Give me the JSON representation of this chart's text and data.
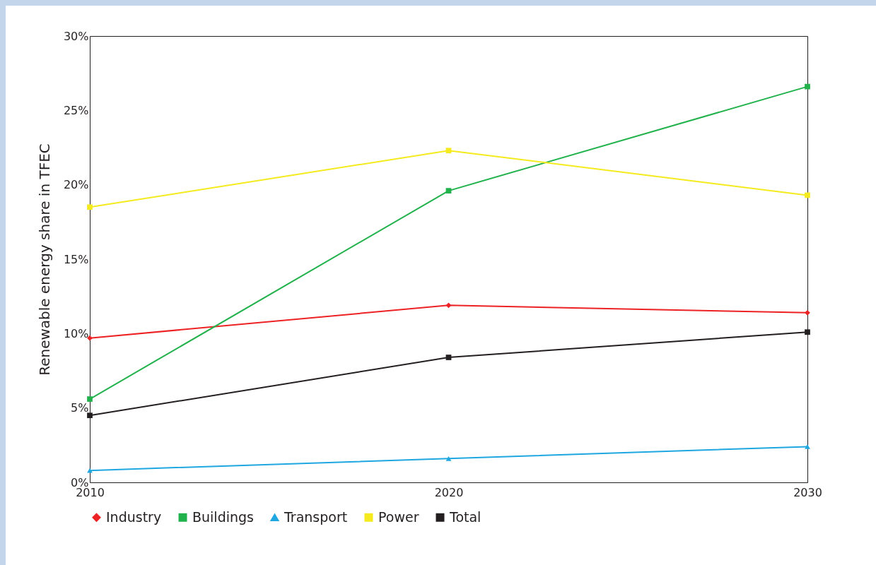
{
  "chart_data": {
    "type": "line",
    "ylabel": "Renewable energy share in TFEC",
    "x": [
      2010,
      2020,
      2030
    ],
    "xlim": [
      2010,
      2030
    ],
    "xticks": [
      2010,
      2020,
      2030
    ],
    "ylim": [
      0,
      30
    ],
    "yticks": [
      {
        "value": 0,
        "label": "0%"
      },
      {
        "value": 5,
        "label": "5%"
      },
      {
        "value": 10,
        "label": "10%"
      },
      {
        "value": 15,
        "label": "15%"
      },
      {
        "value": 20,
        "label": "20%"
      },
      {
        "value": 25,
        "label": "25%"
      },
      {
        "value": 30,
        "label": "30%"
      }
    ],
    "grid": false,
    "legend": "bottom",
    "line_style": "solid",
    "series": [
      {
        "name": "Industry",
        "color": "#ed2224",
        "marker": "diamond",
        "values": [
          9.7,
          11.9,
          11.4
        ]
      },
      {
        "name": "Buildings",
        "color": "#22b24c",
        "marker": "square",
        "values": [
          5.6,
          19.6,
          26.6
        ]
      },
      {
        "name": "Transport",
        "color": "#1ea7e1",
        "marker": "triangle",
        "values": [
          0.8,
          1.6,
          2.4
        ]
      },
      {
        "name": "Power",
        "color": "#f4ea1e",
        "marker": "square",
        "values": [
          18.5,
          22.3,
          19.3
        ]
      },
      {
        "name": "Total",
        "color": "#231f20",
        "marker": "square",
        "values": [
          4.5,
          8.4,
          10.1
        ]
      }
    ]
  }
}
